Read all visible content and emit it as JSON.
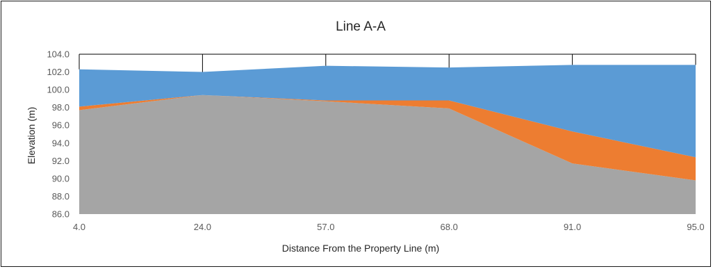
{
  "chart_data": {
    "type": "area",
    "title": "Line A-A",
    "xlabel": "Distance From the Property Line (m)",
    "ylabel": "Elevation (m)",
    "categories": [
      "4.0",
      "24.0",
      "57.0",
      "68.0",
      "91.0",
      "95.0"
    ],
    "ylim": [
      86.0,
      104.0
    ],
    "yticks": [
      "104.0",
      "102.0",
      "100.0",
      "98.0",
      "96.0",
      "94.0",
      "92.0",
      "90.0",
      "88.0",
      "86.0"
    ],
    "stacked": true,
    "grid": false,
    "legend": "none",
    "layers": [
      {
        "values": [
          97.7,
          99.4,
          98.7,
          97.9,
          91.7,
          89.8
        ],
        "color": "#a5a5a5"
      },
      {
        "values": [
          98.1,
          99.4,
          98.8,
          98.8,
          95.3,
          92.4
        ],
        "color": "#ed7d31"
      },
      {
        "values": [
          102.3,
          102.0,
          102.7,
          102.5,
          102.8,
          102.8
        ],
        "color": "#5b9bd5"
      }
    ]
  }
}
